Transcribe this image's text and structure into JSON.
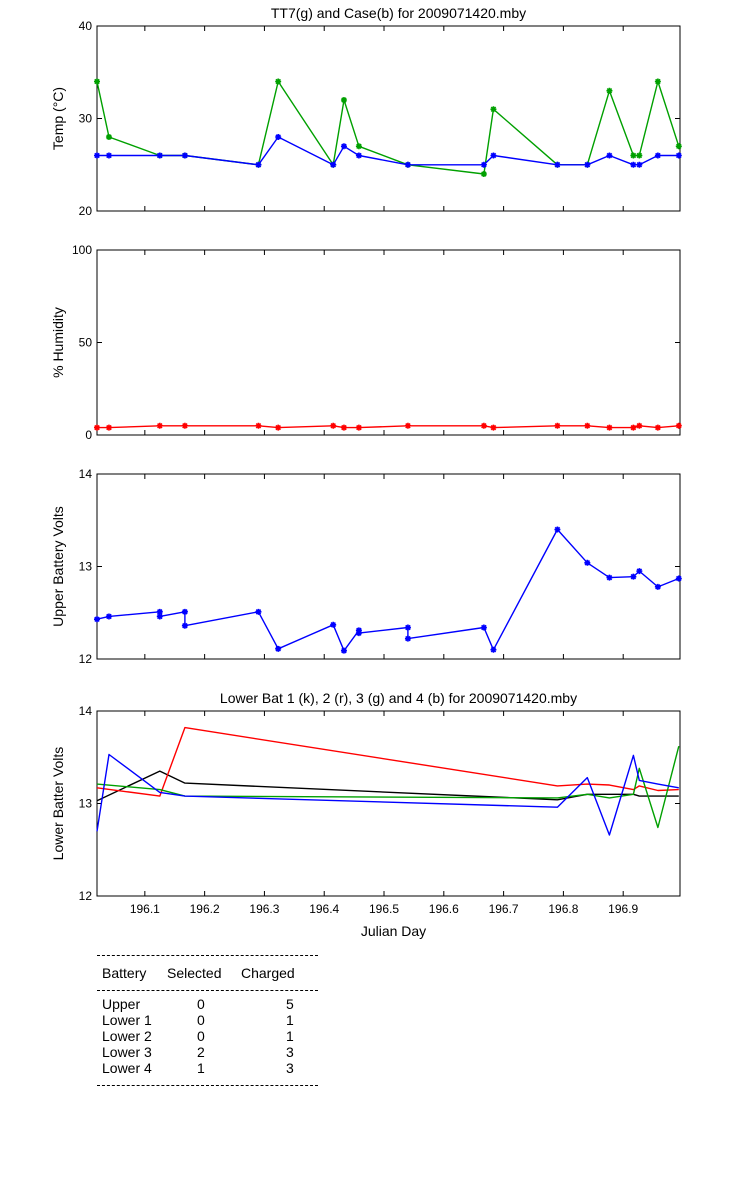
{
  "chart_data": [
    {
      "type": "line",
      "title": "TT7(g) and Case(b) for 2009071420.mby",
      "xlabel": "",
      "ylabel": "Temp  (°C)",
      "xlim": [
        196.02,
        196.995
      ],
      "ylim": [
        20,
        40
      ],
      "yticks": [
        20,
        30,
        40
      ],
      "xticks": [
        196.1,
        196.2,
        196.3,
        196.4,
        196.5,
        196.6,
        196.7,
        196.8,
        196.9
      ],
      "show_xtick_labels": false,
      "series": [
        {
          "color": "#00a000",
          "marker": "*",
          "x": [
            196.02,
            196.04,
            196.125,
            196.167,
            196.29,
            196.323,
            196.415,
            196.433,
            196.458,
            196.54,
            196.667,
            196.683,
            196.79,
            196.84,
            196.877,
            196.917,
            196.927,
            196.958,
            196.993
          ],
          "y": [
            34,
            28,
            26,
            26,
            25,
            34,
            25,
            32,
            27,
            25,
            24,
            31,
            25,
            25,
            33,
            26,
            26,
            34,
            27
          ]
        },
        {
          "color": "#0000ff",
          "marker": "*",
          "x": [
            196.02,
            196.04,
            196.125,
            196.167,
            196.29,
            196.323,
            196.415,
            196.433,
            196.458,
            196.54,
            196.667,
            196.683,
            196.79,
            196.84,
            196.877,
            196.917,
            196.927,
            196.958,
            196.993
          ],
          "y": [
            26,
            26,
            26,
            26,
            25,
            28,
            25,
            27,
            26,
            25,
            25,
            26,
            25,
            25,
            26,
            25,
            25,
            26,
            26
          ]
        }
      ]
    },
    {
      "type": "line",
      "title": "",
      "xlabel": "",
      "ylabel": "% Humidity",
      "xlim": [
        196.02,
        196.995
      ],
      "ylim": [
        0,
        100
      ],
      "yticks": [
        0,
        50,
        100
      ],
      "xticks": [
        196.1,
        196.2,
        196.3,
        196.4,
        196.5,
        196.6,
        196.7,
        196.8,
        196.9
      ],
      "show_xtick_labels": false,
      "series": [
        {
          "color": "#ff0000",
          "marker": "*",
          "x": [
            196.02,
            196.04,
            196.125,
            196.167,
            196.29,
            196.323,
            196.415,
            196.433,
            196.458,
            196.54,
            196.667,
            196.683,
            196.79,
            196.84,
            196.877,
            196.917,
            196.927,
            196.958,
            196.993
          ],
          "y": [
            4,
            4,
            5,
            5,
            5,
            4,
            5,
            4,
            4,
            5,
            5,
            4,
            5,
            5,
            4,
            4,
            5,
            4,
            5
          ]
        }
      ]
    },
    {
      "type": "line",
      "title": "",
      "xlabel": "",
      "ylabel": "Upper Battery Volts",
      "xlim": [
        196.02,
        196.995
      ],
      "ylim": [
        12,
        14
      ],
      "yticks": [
        12,
        13,
        14
      ],
      "xticks": [
        196.1,
        196.2,
        196.3,
        196.4,
        196.5,
        196.6,
        196.7,
        196.8,
        196.9
      ],
      "show_xtick_labels": false,
      "series": [
        {
          "color": "#0000ff",
          "marker": "*",
          "x": [
            196.02,
            196.04,
            196.125,
            196.125,
            196.167,
            196.167,
            196.29,
            196.323,
            196.415,
            196.433,
            196.458,
            196.458,
            196.54,
            196.54,
            196.667,
            196.683,
            196.79,
            196.84,
            196.877,
            196.917,
            196.927,
            196.958,
            196.993
          ],
          "y": [
            12.43,
            12.46,
            12.51,
            12.46,
            12.51,
            12.36,
            12.51,
            12.11,
            12.37,
            12.09,
            12.31,
            12.28,
            12.34,
            12.22,
            12.34,
            12.1,
            13.4,
            13.04,
            12.88,
            12.89,
            12.95,
            12.78,
            12.87
          ]
        }
      ]
    },
    {
      "type": "line",
      "title": "Lower Bat 1 (k), 2 (r), 3 (g) and 4 (b) for 2009071420.mby",
      "xlabel": "Julian Day",
      "ylabel": "Lower Batter Volts",
      "xlim": [
        196.02,
        196.995
      ],
      "ylim": [
        12,
        14
      ],
      "yticks": [
        12,
        13,
        14
      ],
      "xticks": [
        196.1,
        196.2,
        196.3,
        196.4,
        196.5,
        196.6,
        196.7,
        196.8,
        196.9
      ],
      "xtick_labels": [
        "196.1",
        "196.2",
        "196.3",
        "196.4",
        "196.5",
        "196.6",
        "196.7",
        "196.8",
        "196.9"
      ],
      "show_xtick_labels": true,
      "series": [
        {
          "color": "#000000",
          "x": [
            196.02,
            196.125,
            196.167,
            196.79,
            196.84,
            196.877,
            196.917,
            196.927,
            196.958,
            196.993
          ],
          "y": [
            13.03,
            13.35,
            13.22,
            13.04,
            13.1,
            13.1,
            13.1,
            13.08,
            13.08,
            13.08
          ]
        },
        {
          "color": "#ff0000",
          "x": [
            196.02,
            196.125,
            196.167,
            196.79,
            196.84,
            196.877,
            196.917,
            196.927,
            196.958,
            196.993
          ],
          "y": [
            13.17,
            13.08,
            13.82,
            13.19,
            13.21,
            13.2,
            13.15,
            13.19,
            13.14,
            13.15
          ]
        },
        {
          "color": "#00a000",
          "x": [
            196.02,
            196.125,
            196.167,
            196.79,
            196.84,
            196.877,
            196.917,
            196.927,
            196.958,
            196.993
          ],
          "y": [
            13.21,
            13.15,
            13.08,
            13.06,
            13.1,
            13.06,
            13.1,
            13.38,
            12.74,
            13.62
          ]
        },
        {
          "color": "#0000ff",
          "x": [
            196.02,
            196.04,
            196.125,
            196.167,
            196.79,
            196.84,
            196.877,
            196.917,
            196.927,
            196.958,
            196.993
          ],
          "y": [
            12.7,
            13.53,
            13.12,
            13.08,
            12.96,
            13.28,
            12.66,
            13.52,
            13.25,
            13.21,
            13.17
          ]
        }
      ]
    }
  ],
  "battery_table": {
    "headers": [
      "Battery",
      "Selected",
      "Charged"
    ],
    "rows": [
      [
        "Upper",
        "0",
        "5"
      ],
      [
        "Lower 1",
        "0",
        "1"
      ],
      [
        "Lower 2",
        "0",
        "1"
      ],
      [
        "Lower 3",
        "2",
        "3"
      ],
      [
        "Lower 4",
        "1",
        "3"
      ]
    ]
  }
}
